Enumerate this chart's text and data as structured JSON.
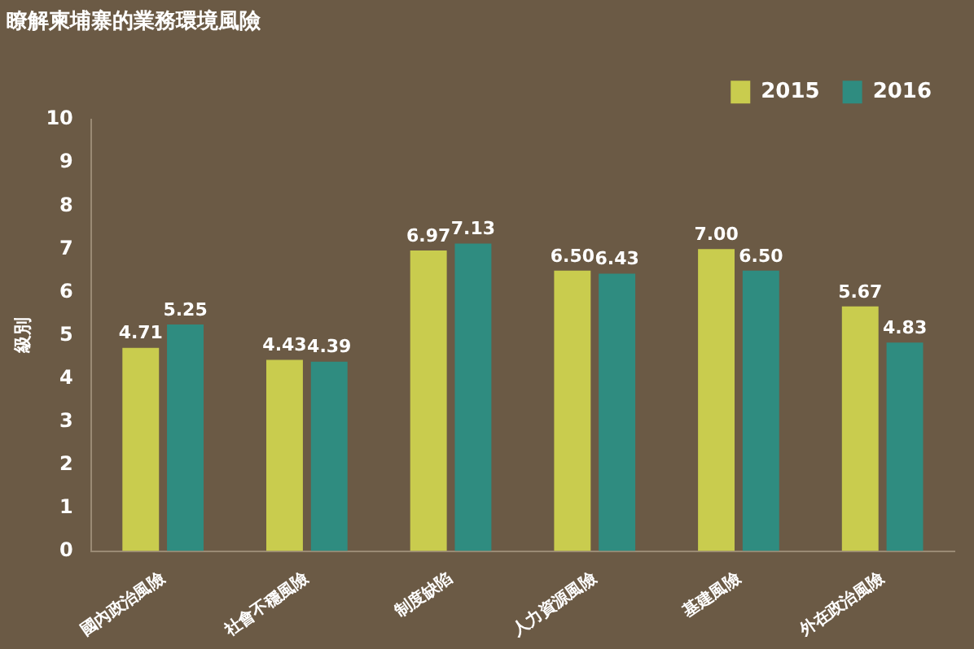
{
  "chart_data": {
    "type": "bar",
    "title": "瞭解柬埔寨的業務環境風險",
    "ylabel": "級別",
    "categories": [
      "國內政治風險",
      "社會不穩風險",
      "制度缺陷",
      "人力資源風險",
      "基建風險",
      "外在政治風險"
    ],
    "series": [
      {
        "name": "2015",
        "color": "#c9cc4e",
        "values": [
          4.71,
          4.43,
          6.97,
          6.5,
          7.0,
          5.67
        ]
      },
      {
        "name": "2016",
        "color": "#2f8c80",
        "values": [
          5.25,
          4.39,
          7.13,
          6.43,
          6.5,
          4.83
        ]
      }
    ],
    "value_labels": [
      [
        "4.71",
        "4.43",
        "6.97",
        "6.50",
        "7.00",
        "5.67"
      ],
      [
        "5.25",
        "4.39",
        "7.13",
        "6.43",
        "6.50",
        "4.83"
      ]
    ],
    "ylim": [
      0,
      10
    ],
    "yticks": [
      0,
      1,
      2,
      3,
      4,
      5,
      6,
      7,
      8,
      9,
      10
    ],
    "grid": false,
    "legend": "top right"
  }
}
